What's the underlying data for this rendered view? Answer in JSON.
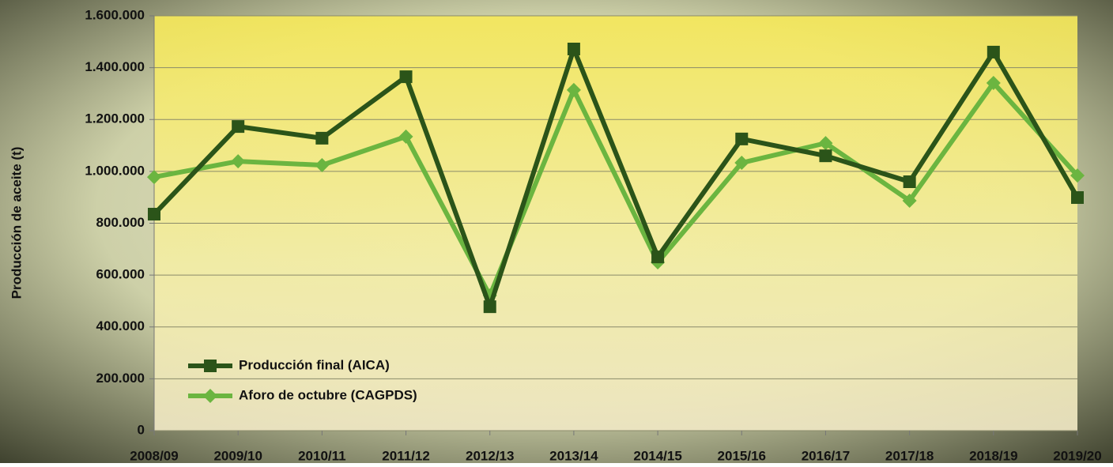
{
  "chart_data": {
    "type": "line",
    "y_label": "Producción de aceite (t)",
    "categories": [
      "2008/09",
      "2009/10",
      "2010/11",
      "2011/12",
      "2012/13",
      "2013/14",
      "2014/15",
      "2015/16",
      "2016/17",
      "2017/18",
      "2018/19",
      "2019/20"
    ],
    "series": [
      {
        "name": "Producción final (AICA)",
        "color": "#2b5419",
        "marker": "square",
        "values": [
          835000,
          1173000,
          1128000,
          1365000,
          478000,
          1472000,
          670000,
          1125000,
          1060000,
          960000,
          1460000,
          899000
        ]
      },
      {
        "name": "Aforo de octubre (CAGPDS)",
        "color": "#6bb540",
        "marker": "diamond",
        "values": [
          978000,
          1039000,
          1024000,
          1134000,
          521000,
          1314000,
          649000,
          1033000,
          1109000,
          887000,
          1341000,
          984000
        ]
      }
    ],
    "ylim": [
      0,
      1600000
    ],
    "yticks": [
      0,
      {
        "value": 200000,
        "label": "200.000"
      },
      {
        "value": 400000,
        "label": "400.000"
      },
      {
        "value": 600000,
        "label": "600.000"
      },
      {
        "value": 800000,
        "label": "800.000"
      },
      {
        "value": 1000000,
        "label": "1.000.000"
      },
      {
        "value": 1200000,
        "label": "1.200.000"
      },
      {
        "value": 1400000,
        "label": "1.400.000"
      },
      {
        "value": 1600000,
        "label": "1.600.000"
      }
    ],
    "grid": true,
    "legend": "lower-left"
  }
}
